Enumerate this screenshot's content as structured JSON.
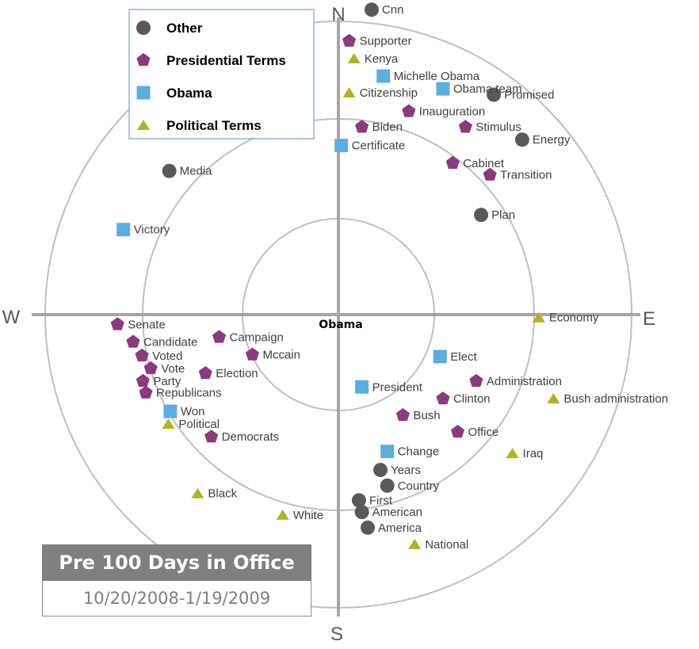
{
  "chart_data": {
    "type": "scatter",
    "subtype": "polar-bullseye",
    "center_label": "Obama",
    "compass": {
      "north": "N",
      "east": "E",
      "south": "S",
      "west": "W"
    },
    "rings": 3,
    "legend": {
      "placement": "top-left",
      "entries": [
        {
          "name": "Other",
          "shape": "circle",
          "color": "#595959"
        },
        {
          "name": "Presidential Terms",
          "shape": "pentagon",
          "color": "#8b3a7e"
        },
        {
          "name": "Obama",
          "shape": "square",
          "color": "#5aaee0"
        },
        {
          "name": "Political Terms",
          "shape": "triangle",
          "color": "#b3b320"
        }
      ]
    },
    "note": "x: west(-) to east(+), y: south(-) to north(+); outer ring radius = 3",
    "points": [
      {
        "label": "Cnn",
        "category": "Other",
        "x": 0.34,
        "y": 3.12
      },
      {
        "label": "Promised",
        "category": "Other",
        "x": 1.59,
        "y": 2.25
      },
      {
        "label": "Energy",
        "category": "Other",
        "x": 1.88,
        "y": 1.79
      },
      {
        "label": "Plan",
        "category": "Other",
        "x": 1.46,
        "y": 1.02
      },
      {
        "label": "Media",
        "category": "Other",
        "x": -1.73,
        "y": 1.47
      },
      {
        "label": "Years",
        "category": "Other",
        "x": 0.43,
        "y": -1.59
      },
      {
        "label": "Country",
        "category": "Other",
        "x": 0.5,
        "y": -1.75
      },
      {
        "label": "First",
        "category": "Other",
        "x": 0.21,
        "y": -1.9
      },
      {
        "label": "American",
        "category": "Other",
        "x": 0.24,
        "y": -2.02
      },
      {
        "label": "America",
        "category": "Other",
        "x": 0.3,
        "y": -2.18
      },
      {
        "label": "Supporter",
        "category": "Presidential Terms",
        "x": 0.11,
        "y": 2.8
      },
      {
        "label": "Inauguration",
        "category": "Presidential Terms",
        "x": 0.72,
        "y": 2.08
      },
      {
        "label": "Biden",
        "category": "Presidential Terms",
        "x": 0.24,
        "y": 1.92
      },
      {
        "label": "Stimulus",
        "category": "Presidential Terms",
        "x": 1.3,
        "y": 1.92
      },
      {
        "label": "Cabinet",
        "category": "Presidential Terms",
        "x": 1.17,
        "y": 1.55
      },
      {
        "label": "Transition",
        "category": "Presidential Terms",
        "x": 1.55,
        "y": 1.43
      },
      {
        "label": "Senate",
        "category": "Presidential Terms",
        "x": -2.26,
        "y": -0.1
      },
      {
        "label": "Candidate",
        "category": "Presidential Terms",
        "x": -2.1,
        "y": -0.28
      },
      {
        "label": "Voted",
        "category": "Presidential Terms",
        "x": -2.01,
        "y": -0.42
      },
      {
        "label": "Vote",
        "category": "Presidential Terms",
        "x": -1.92,
        "y": -0.55
      },
      {
        "label": "Party",
        "category": "Presidential Terms",
        "x": -2.0,
        "y": -0.68
      },
      {
        "label": "Republicans",
        "category": "Presidential Terms",
        "x": -1.97,
        "y": -0.8
      },
      {
        "label": "Democrats",
        "category": "Presidential Terms",
        "x": -1.3,
        "y": -1.25
      },
      {
        "label": "Campaign",
        "category": "Presidential Terms",
        "x": -1.22,
        "y": -0.23
      },
      {
        "label": "Mccain",
        "category": "Presidential Terms",
        "x": -0.88,
        "y": -0.41
      },
      {
        "label": "Election",
        "category": "Presidential Terms",
        "x": -1.36,
        "y": -0.6
      },
      {
        "label": "Administration",
        "category": "Presidential Terms",
        "x": 1.41,
        "y": -0.68
      },
      {
        "label": "Clinton",
        "category": "Presidential Terms",
        "x": 1.07,
        "y": -0.86
      },
      {
        "label": "Bush",
        "category": "Presidential Terms",
        "x": 0.66,
        "y": -1.03
      },
      {
        "label": "Office",
        "category": "Presidential Terms",
        "x": 1.22,
        "y": -1.2
      },
      {
        "label": "Michelle Obama",
        "category": "Obama",
        "x": 0.46,
        "y": 2.44
      },
      {
        "label": "Obama team",
        "category": "Obama",
        "x": 1.07,
        "y": 2.31
      },
      {
        "label": "Certificate",
        "category": "Obama",
        "x": 0.03,
        "y": 1.73
      },
      {
        "label": "Victory",
        "category": "Obama",
        "x": -2.2,
        "y": 0.87
      },
      {
        "label": "Elect",
        "category": "Obama",
        "x": 1.04,
        "y": -0.43
      },
      {
        "label": "President",
        "category": "Obama",
        "x": 0.24,
        "y": -0.74
      },
      {
        "label": "Won",
        "category": "Obama",
        "x": -1.72,
        "y": -0.99
      },
      {
        "label": "Change",
        "category": "Obama",
        "x": 0.5,
        "y": -1.4
      },
      {
        "label": "Kenya",
        "category": "Political Terms",
        "x": 0.16,
        "y": 2.62
      },
      {
        "label": "Citizenship",
        "category": "Political Terms",
        "x": 0.11,
        "y": 2.27
      },
      {
        "label": "Economy",
        "category": "Political Terms",
        "x": 2.05,
        "y": -0.03
      },
      {
        "label": "Bush administration",
        "category": "Political Terms",
        "x": 2.2,
        "y": -0.86
      },
      {
        "label": "Political",
        "category": "Political Terms",
        "x": -1.74,
        "y": -1.12
      },
      {
        "label": "Iraq",
        "category": "Political Terms",
        "x": 1.78,
        "y": -1.42
      },
      {
        "label": "Black",
        "category": "Political Terms",
        "x": -1.44,
        "y": -1.83
      },
      {
        "label": "White",
        "category": "Political Terms",
        "x": -0.57,
        "y": -2.05
      },
      {
        "label": "National",
        "category": "Political Terms",
        "x": 0.78,
        "y": -2.35
      }
    ]
  },
  "caption": {
    "title": "Pre 100 Days in Office",
    "date_range": "10/20/2008-1/19/2009"
  }
}
